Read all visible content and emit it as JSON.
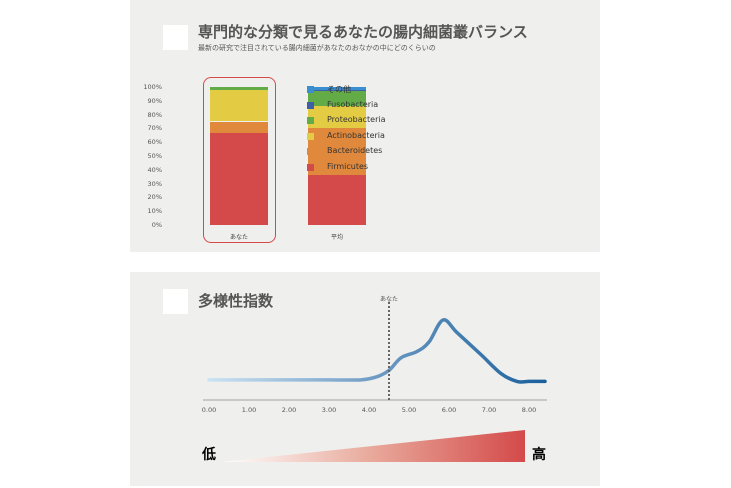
{
  "section1": {
    "title": "専門的な分類で見るあなたの腸内細菌叢バランス",
    "subtitle": "最新の研究で注目されている腸内細菌があなたのおなかの中にどのくらいの"
  },
  "section2": {
    "title": "多様性指数",
    "marker_label": "あなた",
    "low_label": "低",
    "high_label": "高"
  },
  "chart_data": [
    {
      "type": "bar",
      "stacked": true,
      "categories": [
        "あなた",
        "平均"
      ],
      "yticks": [
        "0%",
        "10%",
        "20%",
        "30%",
        "40%",
        "50%",
        "60%",
        "70%",
        "80%",
        "90%",
        "100%"
      ],
      "ylim": [
        0,
        100
      ],
      "legend_position": "right",
      "series": [
        {
          "name": "Firmicutes",
          "color": "#d44a4a",
          "values": [
            67,
            36
          ]
        },
        {
          "name": "Bacteroidetes",
          "color": "#e0893c",
          "values": [
            8,
            34
          ]
        },
        {
          "name": "Actinobacteria",
          "color": "#e3cc44",
          "values": [
            23,
            16
          ]
        },
        {
          "name": "Proteobacteria",
          "color": "#62ab47",
          "values": [
            2,
            11
          ]
        },
        {
          "name": "Fusobacteria",
          "color": "#3f5ea8",
          "values": [
            0,
            1
          ]
        },
        {
          "name": "その他",
          "color": "#3a8fd0",
          "values": [
            0,
            2
          ]
        }
      ],
      "highlight": "あなた",
      "highlight_color": "#d44a4a"
    },
    {
      "type": "line",
      "xlim": [
        0,
        8.4
      ],
      "xticks": [
        "0.00",
        "1.00",
        "2.00",
        "3.00",
        "4.00",
        "5.00",
        "6.00",
        "7.00",
        "8.00"
      ],
      "x": [
        0,
        1,
        2,
        3,
        3.8,
        4.2,
        4.5,
        4.8,
        5.2,
        5.5,
        5.85,
        6.2,
        6.8,
        7.3,
        7.7,
        8,
        8.4
      ],
      "y": [
        0.1,
        0.1,
        0.1,
        0.1,
        0.1,
        0.2,
        0.4,
        0.8,
        1.0,
        1.3,
        2.0,
        1.6,
        0.9,
        0.3,
        0.05,
        0.05,
        0.05
      ],
      "marker_x": 4.5,
      "line_color": "#1e64a0"
    }
  ]
}
